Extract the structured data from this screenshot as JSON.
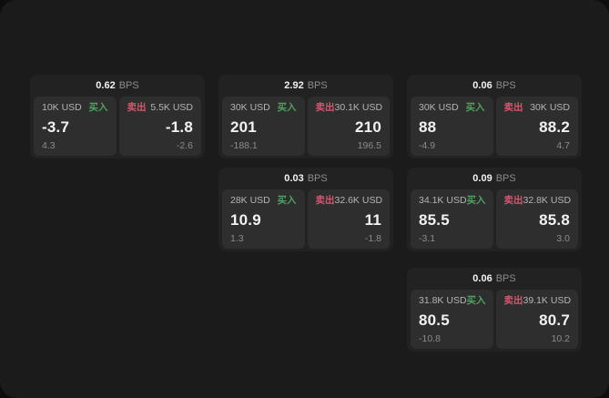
{
  "colors": {
    "page_bg": "#0d0d0d",
    "panel_bg": "#1b1b1b",
    "card_bg": "#222222",
    "tile_bg": "#2e2e2e",
    "text_primary": "#f2f2f2",
    "text_secondary": "#b5b5b5",
    "text_muted": "#8c8c8c",
    "buy_green": "#4aa35e",
    "sell_red": "#d4566d"
  },
  "labels": {
    "bps_unit": "BPS",
    "buy": "买入",
    "sell": "卖出"
  },
  "cards": [
    {
      "row": 1,
      "col": 1,
      "bps": "0.62",
      "buy": {
        "amount": "10K USD",
        "value": "-3.7",
        "sub": "4.3"
      },
      "sell": {
        "amount": "5.5K USD",
        "value": "-1.8",
        "sub": "-2.6"
      }
    },
    {
      "row": 1,
      "col": 2,
      "bps": "2.92",
      "buy": {
        "amount": "30K USD",
        "value": "201",
        "sub": "-188.1"
      },
      "sell": {
        "amount": "30.1K USD",
        "value": "210",
        "sub": "196.5"
      }
    },
    {
      "row": 1,
      "col": 3,
      "bps": "0.06",
      "buy": {
        "amount": "30K USD",
        "value": "88",
        "sub": "-4.9"
      },
      "sell": {
        "amount": "30K USD",
        "value": "88.2",
        "sub": "4.7"
      }
    },
    {
      "row": 2,
      "col": 2,
      "bps": "0.03",
      "buy": {
        "amount": "28K USD",
        "value": "10.9",
        "sub": "1.3"
      },
      "sell": {
        "amount": "32.6K USD",
        "value": "11",
        "sub": "-1.8"
      }
    },
    {
      "row": 2,
      "col": 3,
      "bps": "0.09",
      "buy": {
        "amount": "34.1K USD",
        "value": "85.5",
        "sub": "-3.1"
      },
      "sell": {
        "amount": "32.8K USD",
        "value": "85.8",
        "sub": "3.0"
      }
    },
    {
      "row": 3,
      "col": 3,
      "bps": "0.06",
      "buy": {
        "amount": "31.8K USD",
        "value": "80.5",
        "sub": "-10.8"
      },
      "sell": {
        "amount": "39.1K USD",
        "value": "80.7",
        "sub": "10.2"
      }
    }
  ]
}
